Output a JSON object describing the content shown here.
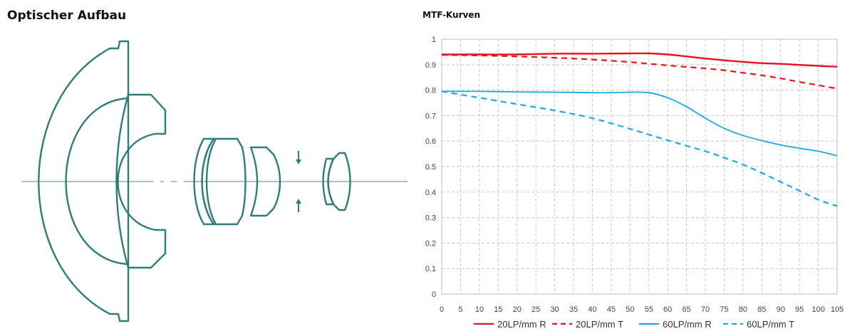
{
  "optics": {
    "title": "Optischer Aufbau"
  },
  "mtf": {
    "title": "MTF-Kurven"
  },
  "colors": {
    "lens": "#2f7d7b",
    "axis": "#6aa6a3",
    "red": "#e8141b",
    "blue": "#18a9e8",
    "grid": "#c8c8c8"
  },
  "chart_data": {
    "type": "line",
    "title": "MTF-Kurven",
    "xlabel": "",
    "ylabel": "",
    "xlim": [
      0,
      105
    ],
    "ylim": [
      0,
      1
    ],
    "x_ticks": [
      "0",
      "5",
      "10",
      "15",
      "20",
      "25",
      "30",
      "35",
      "40",
      "45",
      "50",
      "55",
      "60",
      "65",
      "70",
      "75",
      "80",
      "85",
      "90",
      "95",
      "100",
      "105"
    ],
    "y_ticks": [
      "0",
      "0.1",
      "0.2",
      "0.3",
      "0.4",
      "0.5",
      "0.6",
      "0.7",
      "0.8",
      "0.9",
      "1"
    ],
    "grid": true,
    "legend_position": "bottom",
    "series": [
      {
        "name": "20LP/mm R",
        "color": "#e8141b",
        "dash": false,
        "points": [
          [
            0,
            0.94
          ],
          [
            10,
            0.94
          ],
          [
            20,
            0.94
          ],
          [
            30,
            0.943
          ],
          [
            40,
            0.943
          ],
          [
            50,
            0.944
          ],
          [
            55,
            0.944
          ],
          [
            60,
            0.94
          ],
          [
            65,
            0.932
          ],
          [
            70,
            0.924
          ],
          [
            75,
            0.917
          ],
          [
            80,
            0.911
          ],
          [
            85,
            0.906
          ],
          [
            90,
            0.903
          ],
          [
            95,
            0.899
          ],
          [
            100,
            0.895
          ],
          [
            105,
            0.892
          ]
        ]
      },
      {
        "name": "20LP/mm T",
        "color": "#e8141b",
        "dash": true,
        "points": [
          [
            0,
            0.938
          ],
          [
            10,
            0.936
          ],
          [
            20,
            0.932
          ],
          [
            30,
            0.927
          ],
          [
            40,
            0.92
          ],
          [
            50,
            0.91
          ],
          [
            60,
            0.897
          ],
          [
            70,
            0.885
          ],
          [
            75,
            0.878
          ],
          [
            80,
            0.868
          ],
          [
            85,
            0.858
          ],
          [
            90,
            0.846
          ],
          [
            95,
            0.832
          ],
          [
            100,
            0.819
          ],
          [
            105,
            0.806
          ]
        ]
      },
      {
        "name": "60LP/mm R",
        "color": "#18a9e8",
        "dash": false,
        "points": [
          [
            0,
            0.795
          ],
          [
            10,
            0.795
          ],
          [
            20,
            0.793
          ],
          [
            30,
            0.792
          ],
          [
            40,
            0.79
          ],
          [
            45,
            0.79
          ],
          [
            50,
            0.792
          ],
          [
            55,
            0.79
          ],
          [
            60,
            0.77
          ],
          [
            65,
            0.735
          ],
          [
            70,
            0.69
          ],
          [
            75,
            0.65
          ],
          [
            80,
            0.622
          ],
          [
            85,
            0.602
          ],
          [
            90,
            0.585
          ],
          [
            95,
            0.572
          ],
          [
            100,
            0.56
          ],
          [
            105,
            0.543
          ]
        ]
      },
      {
        "name": "60LP/mm T",
        "color": "#18a9e8",
        "dash": true,
        "points": [
          [
            0,
            0.795
          ],
          [
            10,
            0.77
          ],
          [
            20,
            0.745
          ],
          [
            30,
            0.72
          ],
          [
            40,
            0.69
          ],
          [
            50,
            0.648
          ],
          [
            60,
            0.603
          ],
          [
            70,
            0.56
          ],
          [
            75,
            0.535
          ],
          [
            80,
            0.508
          ],
          [
            85,
            0.475
          ],
          [
            90,
            0.44
          ],
          [
            95,
            0.405
          ],
          [
            100,
            0.37
          ],
          [
            105,
            0.345
          ]
        ]
      }
    ]
  }
}
